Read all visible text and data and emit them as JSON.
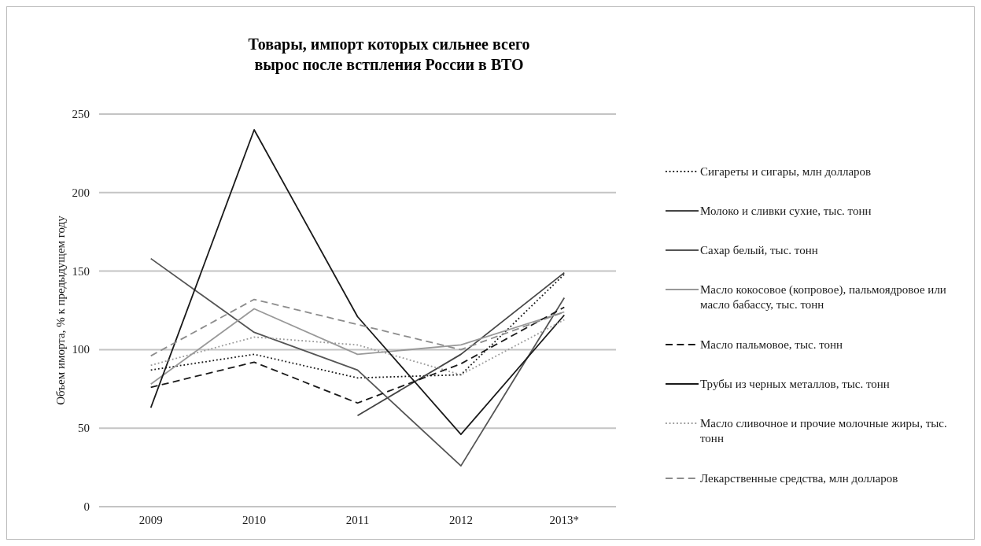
{
  "chart_data": {
    "type": "line",
    "title": "Товары, импорт которых сильнее всего\nвырос после встпления России в ВТО",
    "ylabel": "Объем иморта, % к предыдущем году",
    "categories": [
      "2009",
      "2010",
      "2011",
      "2012",
      "2013*"
    ],
    "ylim": [
      0,
      250
    ],
    "yticks": [
      0,
      50,
      100,
      150,
      200,
      250
    ],
    "grid": "y",
    "legend": "right",
    "series": [
      {
        "name": "Сигареты и сигары, млн долларов",
        "color": "#1a1a1a",
        "line_style": "dotted",
        "values": [
          87,
          97,
          82,
          84,
          148
        ]
      },
      {
        "name": "Молоко и сливки сухие, тыс. тонн",
        "color": "#444444",
        "values": [
          null,
          null,
          58,
          97,
          149
        ]
      },
      {
        "name": "Сахар белый, тыс. тонн",
        "color": "#555555",
        "values": [
          158,
          111,
          87,
          26,
          133
        ]
      },
      {
        "name": "Масло кокосовое (копровое), пальмоядровое или масло бабассу, тыс. тонн",
        "color": "#999999",
        "values": [
          78,
          126,
          97,
          103,
          124
        ]
      },
      {
        "name": "Масло пальмовое, тыс. тонн",
        "color": "#1a1a1a",
        "line_style": "dashed",
        "values": [
          76,
          92,
          66,
          91,
          127
        ]
      },
      {
        "name": "Трубы из черных металлов, тыс. тонн",
        "color": "#1a1a1a",
        "values": [
          63,
          240,
          121,
          46,
          122
        ]
      },
      {
        "name": "Масло сливочное и прочие молочные жиры, тыс. тонн",
        "color": "#999999",
        "line_style": "dotted",
        "values": [
          90,
          108,
          103,
          84,
          119
        ]
      },
      {
        "name": "Лекарственные средства, млн долларов",
        "color": "#8c8c8c",
        "line_style": "dashed",
        "values": [
          96,
          132,
          116,
          100,
          124
        ]
      }
    ]
  }
}
